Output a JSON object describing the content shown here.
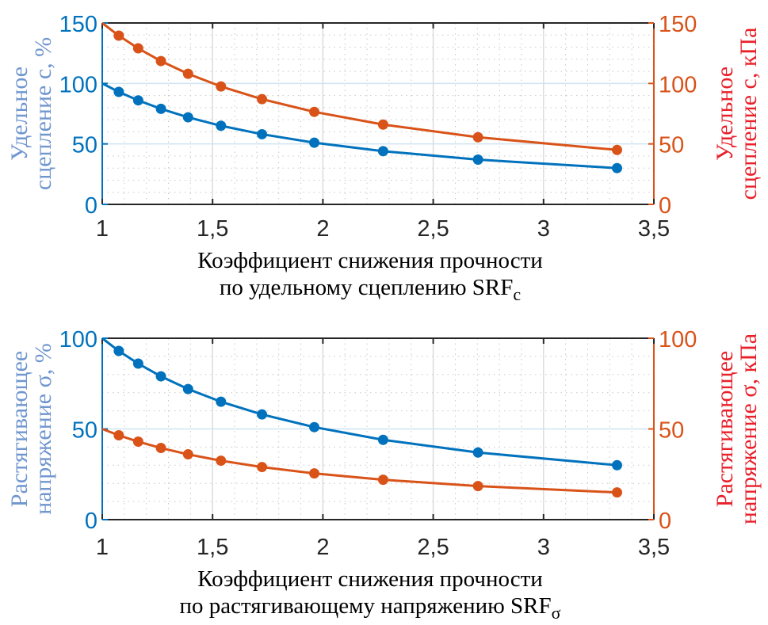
{
  "colors": {
    "blue": "#0072BD",
    "orange": "#D95319",
    "ylabel_left": "#6F96CF",
    "ylabel_right": "#E8202A"
  },
  "chart_data": [
    {
      "type": "line",
      "x": [
        1,
        1.075,
        1.163,
        1.266,
        1.389,
        1.538,
        1.724,
        1.961,
        2.273,
        2.703,
        3.333
      ],
      "xlim": [
        1,
        3.5
      ],
      "xticks": [
        "1",
        "1,5",
        "2",
        "2,5",
        "3",
        "3,5"
      ],
      "xlabel_line1": "Коэффициент снижения прочности",
      "xlabel_line2": "по удельному сцеплению SRF",
      "xlabel_sub": "c",
      "ylabel_left_line1": "Удельное",
      "ylabel_left_line2": "сцепление c, %",
      "ylabel_right_line1": "Удельное",
      "ylabel_right_line2": "сцепление c, кПа",
      "ylim_left": [
        0,
        150
      ],
      "ylim_right": [
        0,
        150
      ],
      "yticks_left": [
        "0",
        "50",
        "100",
        "150"
      ],
      "yticks_right": [
        "0",
        "50",
        "100",
        "150"
      ],
      "grid": true,
      "series": [
        {
          "name": "c, %",
          "axis": "left",
          "color": "blue",
          "values": [
            100,
            93,
            86,
            79,
            72,
            65,
            58,
            51,
            44,
            37,
            30
          ]
        },
        {
          "name": "c, кПа",
          "axis": "right",
          "color": "orange",
          "values": [
            150,
            139.5,
            129,
            118.5,
            108,
            97.5,
            87,
            76.5,
            66,
            55.5,
            45
          ]
        }
      ]
    },
    {
      "type": "line",
      "x": [
        1,
        1.075,
        1.163,
        1.266,
        1.389,
        1.538,
        1.724,
        1.961,
        2.273,
        2.703,
        3.333
      ],
      "xlim": [
        1,
        3.5
      ],
      "xticks": [
        "1",
        "1,5",
        "2",
        "2,5",
        "3",
        "3,5"
      ],
      "xlabel_line1": "Коэффициент снижения прочности",
      "xlabel_line2": "по растягивающему напряжению SRF",
      "xlabel_sub": "σ",
      "ylabel_left_line1": "Растягивающее",
      "ylabel_left_line2": "напряжение σ, %",
      "ylabel_right_line1": "Растягивающее",
      "ylabel_right_line2": "напряжение σ, кПа",
      "ylim_left": [
        0,
        100
      ],
      "ylim_right": [
        0,
        100
      ],
      "yticks_left": [
        "0",
        "50",
        "100"
      ],
      "yticks_right": [
        "0",
        "50",
        "100"
      ],
      "grid": true,
      "series": [
        {
          "name": "σ, %",
          "axis": "left",
          "color": "blue",
          "values": [
            100,
            93,
            86,
            79,
            72,
            65,
            58,
            51,
            44,
            37,
            30
          ]
        },
        {
          "name": "σ, кПа",
          "axis": "right",
          "color": "orange",
          "values": [
            50,
            46.5,
            43,
            39.5,
            36,
            32.5,
            29,
            25.5,
            22,
            18.5,
            15
          ]
        }
      ]
    }
  ]
}
